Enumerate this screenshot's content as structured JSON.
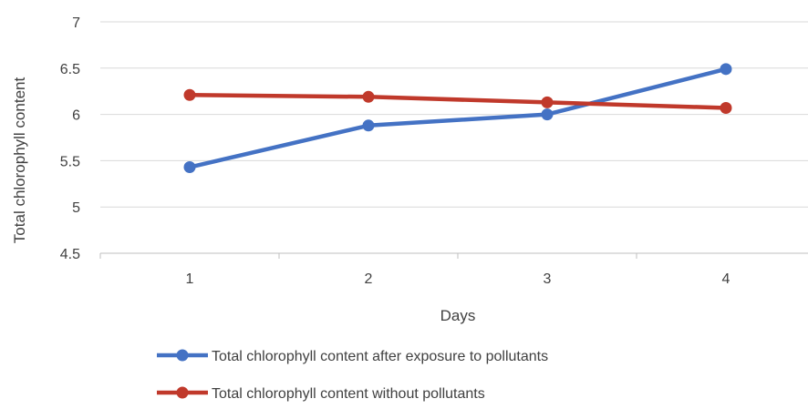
{
  "chart_data": {
    "type": "line",
    "title": "",
    "xlabel": "Days",
    "ylabel": "Total chlorophyll content",
    "categories": [
      "1",
      "2",
      "3",
      "4"
    ],
    "ylim": [
      4.5,
      7
    ],
    "yticks": [
      "4.5",
      "5",
      "5.5",
      "6",
      "6.5",
      "7"
    ],
    "grid": true,
    "legend_position": "bottom",
    "series": [
      {
        "name": "Total chlorophyll content after exposure to pollutants",
        "color": "#4472C4",
        "values": [
          5.43,
          5.88,
          6.0,
          6.49
        ]
      },
      {
        "name": "Total chlorophyll content without pollutants",
        "color": "#C0392B",
        "values": [
          6.21,
          6.19,
          6.13,
          6.07
        ]
      }
    ]
  }
}
